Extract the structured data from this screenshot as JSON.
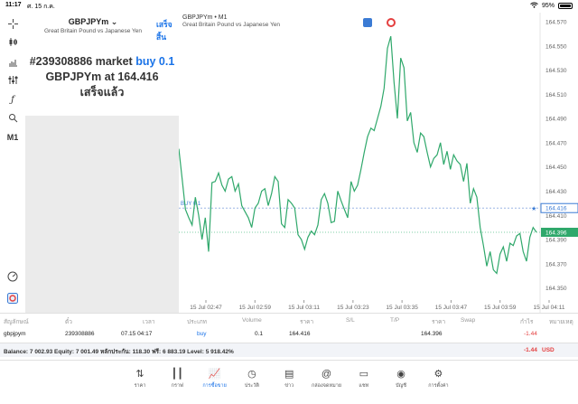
{
  "status": {
    "time": "11:17",
    "date": "ศ. 15 ก.ค.",
    "battery": "95%"
  },
  "left_toolbar": {
    "timeframe": "M1"
  },
  "order_panel": {
    "symbol": "GBPJPYm",
    "description": "Great Britain Pound vs Japanese Yen",
    "done": "เสร็จสิ้น",
    "order_line": "#239308886 market",
    "order_side": "buy 0.1",
    "price_line_prefix": "GBPJPYm at",
    "price_value": "164.416",
    "result": "เสร็จแล้ว"
  },
  "chart": {
    "title": "GBPJPYm • M1",
    "subtitle": "Great Britain Pound vs Japanese Yen",
    "buy_label": "BUY 0.1",
    "buy_price_tag": "164.416",
    "current_price_tag": "164.396",
    "colors": {
      "line": "#2fa86b",
      "buy_tag": "#3b7bd4",
      "current_tag": "#2fa86b"
    }
  },
  "chart_data": {
    "type": "line",
    "ylim": [
      164.34,
      164.57
    ],
    "y_ticks": [
      "164.570",
      "164.550",
      "164.530",
      "164.510",
      "164.490",
      "164.470",
      "164.450",
      "164.430",
      "164.410",
      "164.390",
      "164.370",
      "164.350"
    ],
    "x_ticks": [
      "15 Jul 02:47",
      "15 Jul 02:59",
      "15 Jul 03:11",
      "15 Jul 03:23",
      "15 Jul 03:35",
      "15 Jul 03:47",
      "15 Jul 03:59",
      "15 Jul 04:11"
    ],
    "y": [
      164.465,
      164.44,
      164.415,
      164.408,
      164.402,
      164.425,
      164.41,
      164.39,
      164.408,
      164.38,
      164.437,
      164.438,
      164.445,
      164.435,
      164.43,
      164.44,
      164.442,
      164.43,
      164.436,
      164.418,
      164.413,
      164.408,
      164.4,
      164.416,
      164.42,
      164.43,
      164.432,
      164.418,
      164.428,
      164.442,
      164.438,
      164.403,
      164.4,
      164.423,
      164.42,
      164.416,
      164.394,
      164.39,
      164.382,
      164.392,
      164.397,
      164.394,
      164.402,
      164.423,
      164.428,
      164.42,
      164.404,
      164.405,
      164.43,
      164.422,
      164.415,
      164.408,
      164.438,
      164.43,
      164.435,
      164.448,
      164.462,
      164.475,
      164.482,
      164.48,
      164.49,
      164.5,
      164.515,
      164.548,
      164.558,
      164.52,
      164.49,
      164.54,
      164.532,
      164.488,
      164.495,
      164.47,
      164.462,
      164.478,
      164.475,
      164.462,
      164.45,
      164.457,
      164.46,
      164.47,
      164.452,
      164.463,
      164.448,
      164.46,
      164.455,
      164.452,
      164.438,
      164.453,
      164.42,
      164.432,
      164.425,
      164.4,
      164.385,
      164.368,
      164.38,
      164.365,
      164.362,
      164.378,
      164.384,
      164.372,
      164.387,
      164.385,
      164.393,
      164.395,
      164.38,
      164.372,
      164.392,
      164.4,
      164.396
    ]
  },
  "positions_table": {
    "headers": [
      "สัญลักษณ์",
      "ตั๋ว",
      "เวลา",
      "ประเภท",
      "Volume",
      "ราคา",
      "S/L",
      "T/P",
      "ราคา",
      "Swap",
      "กำไร",
      "หมายเหตุ"
    ],
    "row": {
      "symbol": "gbpjpym",
      "ticket": "239308886",
      "time": "07.15 04:17",
      "type": "buy",
      "volume": "0.1",
      "open_price": "164.416",
      "current_price": "164.396",
      "profit": "-1.44"
    },
    "balance_line": "Balance: 7 002.93 Equity: 7 001.49 หลักประกัน: 118.30 ฟรี: 6 883.19 Level: 5 918.42%",
    "total_profit": "-1.44",
    "currency": "USD"
  },
  "tabs": [
    {
      "label": "ราคา",
      "icon": "arrows-updown-icon"
    },
    {
      "label": "กราฟ",
      "icon": "candles-icon"
    },
    {
      "label": "การซื้อขาย",
      "icon": "chart-trade-icon"
    },
    {
      "label": "ประวัติ",
      "icon": "clock-history-icon"
    },
    {
      "label": "ข่าว",
      "icon": "news-icon"
    },
    {
      "label": "กล่องจดหมาย",
      "icon": "mail-at-icon"
    },
    {
      "label": "แชท",
      "icon": "chat-icon"
    },
    {
      "label": "บัญชี",
      "icon": "account-icon"
    },
    {
      "label": "การตั้งค่า",
      "icon": "gear-icon"
    }
  ]
}
